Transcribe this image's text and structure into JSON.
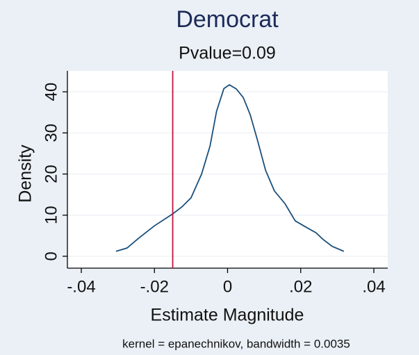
{
  "chart_data": {
    "type": "line",
    "title": "Democrat",
    "subtitle": "Pvalue=0.09",
    "xlabel": "Estimate Magnitude",
    "ylabel": "Density",
    "note": "kernel = epanechnikov, bandwidth = 0.0035",
    "x": [
      -0.0305,
      -0.0275,
      -0.0243,
      -0.02,
      -0.015,
      -0.0125,
      -0.01,
      -0.0071,
      -0.0048,
      -0.003,
      -0.001,
      0.0005,
      0.0024,
      0.0043,
      0.0062,
      0.0081,
      0.0104,
      0.0128,
      0.0157,
      0.0185,
      0.0214,
      0.0242,
      0.0261,
      0.0286,
      0.0318
    ],
    "values": [
      1.2,
      2,
      4.4,
      7.4,
      10.3,
      12,
      14.2,
      20,
      26.8,
      35.3,
      40.8,
      41.7,
      40.7,
      38.6,
      34.4,
      28.5,
      20.9,
      15.9,
      12.8,
      8.6,
      7.1,
      5.7,
      4.1,
      2.4,
      1.2
    ],
    "color": "#1a4f7a",
    "reference_line": {
      "value": -0.015,
      "color": "#c0143c"
    },
    "xlim": [
      -0.0438,
      0.0438
    ],
    "ylim": [
      -2.9,
      45.1
    ],
    "xticks": [
      {
        "value": -0.04,
        "label": "-.04"
      },
      {
        "value": -0.02,
        "label": "-.02"
      },
      0,
      {
        "value": 0.02,
        "label": ".02"
      },
      {
        "value": 0.04,
        "label": ".04"
      }
    ],
    "yticks": [
      0,
      10,
      20,
      30,
      40
    ],
    "grid": true
  }
}
